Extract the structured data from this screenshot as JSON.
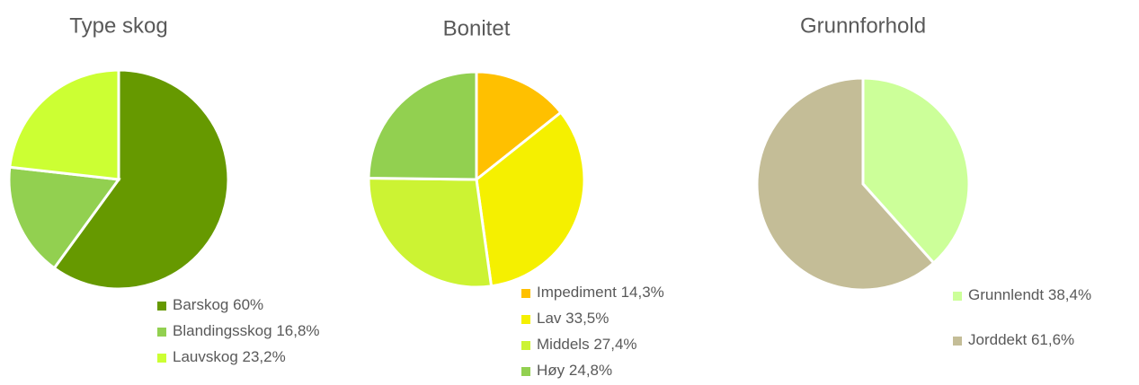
{
  "chart_data": [
    {
      "type": "pie",
      "title": "Type skog",
      "categories": [
        "Barskog",
        "Blandingsskog",
        "Lauvskog"
      ],
      "values": [
        60,
        16.8,
        23.2
      ],
      "value_labels": [
        "60%",
        "16,8%",
        "23,2%"
      ],
      "colors": [
        "#669900",
        "#92d050",
        "#ccff33"
      ]
    },
    {
      "type": "pie",
      "title": "Bonitet",
      "categories": [
        "Impediment",
        "Lav",
        "Middels",
        "Høy"
      ],
      "values": [
        14.3,
        33.5,
        27.4,
        24.8
      ],
      "value_labels": [
        "14,3%",
        "33,5%",
        "27,4%",
        "24,8%"
      ],
      "colors": [
        "#ffc000",
        "#f5f000",
        "#ccf333",
        "#92d050"
      ]
    },
    {
      "type": "pie",
      "title": "Grunnforhold",
      "categories": [
        "Grunnlendt",
        "Jorddekt"
      ],
      "values": [
        38.4,
        61.6
      ],
      "value_labels": [
        "38,4%",
        "61,6%"
      ],
      "colors": [
        "#ccff99",
        "#c4bd97"
      ]
    }
  ]
}
